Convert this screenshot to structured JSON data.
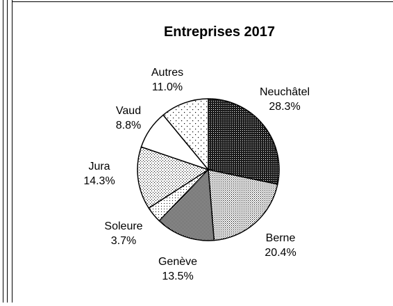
{
  "chart_data": {
    "type": "pie",
    "title": "Entreprises 2017",
    "slices": [
      {
        "label": "Neuchâtel",
        "value": 28.3,
        "value_label": "28.3%",
        "pattern": "dark-dots"
      },
      {
        "label": "Berne",
        "value": 20.4,
        "value_label": "20.4%",
        "pattern": "fine-dots"
      },
      {
        "label": "Genève",
        "value": 13.5,
        "value_label": "13.5%",
        "pattern": "checker"
      },
      {
        "label": "Soleure",
        "value": 3.7,
        "value_label": "3.7%",
        "pattern": "light-dots"
      },
      {
        "label": "Jura",
        "value": 14.3,
        "value_label": "14.3%",
        "pattern": "medium-dots"
      },
      {
        "label": "Vaud",
        "value": 8.8,
        "value_label": "8.8%",
        "pattern": "solid-white"
      },
      {
        "label": "Autres",
        "value": 11.0,
        "value_label": "11.0%",
        "pattern": "sparse-dots"
      }
    ],
    "start_angle_deg": 0,
    "direction": "clockwise",
    "legend": "none",
    "colors": {
      "stroke": "#000000",
      "background": "#ffffff"
    }
  }
}
